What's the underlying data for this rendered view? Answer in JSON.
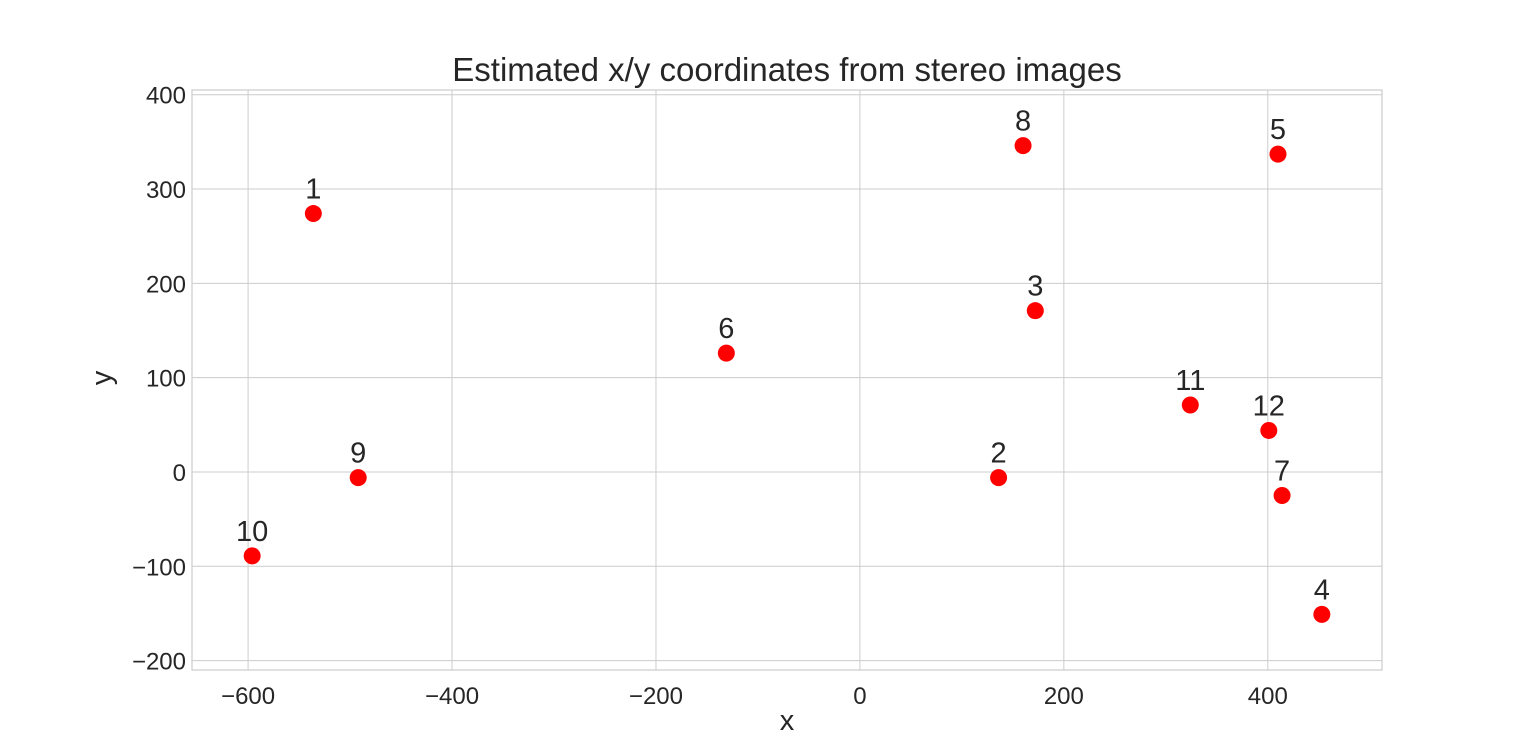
{
  "chart_data": {
    "type": "scatter",
    "title": "Estimated x/y coordinates from stereo images",
    "xlabel": "x",
    "ylabel": "y",
    "xlim": [
      -655,
      512
    ],
    "ylim": [
      -210,
      405
    ],
    "xticks": [
      -600,
      -400,
      -200,
      0,
      200,
      400
    ],
    "yticks": [
      -200,
      -100,
      0,
      100,
      200,
      300,
      400
    ],
    "xtick_labels": [
      "−600",
      "−400",
      "−200",
      "0",
      "200",
      "400"
    ],
    "ytick_labels": [
      "−200",
      "−100",
      "0",
      "100",
      "200",
      "300",
      "400"
    ],
    "grid": true,
    "marker_color": "#ff0000",
    "points": [
      {
        "label": "1",
        "x": -536,
        "y": 274
      },
      {
        "label": "2",
        "x": 136,
        "y": -6
      },
      {
        "label": "3",
        "x": 172,
        "y": 171
      },
      {
        "label": "4",
        "x": 453,
        "y": -151
      },
      {
        "label": "5",
        "x": 410,
        "y": 337
      },
      {
        "label": "6",
        "x": -131,
        "y": 126
      },
      {
        "label": "7",
        "x": 414,
        "y": -25
      },
      {
        "label": "8",
        "x": 160,
        "y": 346
      },
      {
        "label": "9",
        "x": -492,
        "y": -6
      },
      {
        "label": "10",
        "x": -596,
        "y": -89
      },
      {
        "label": "11",
        "x": 324,
        "y": 71
      },
      {
        "label": "12",
        "x": 401,
        "y": 44
      }
    ]
  }
}
